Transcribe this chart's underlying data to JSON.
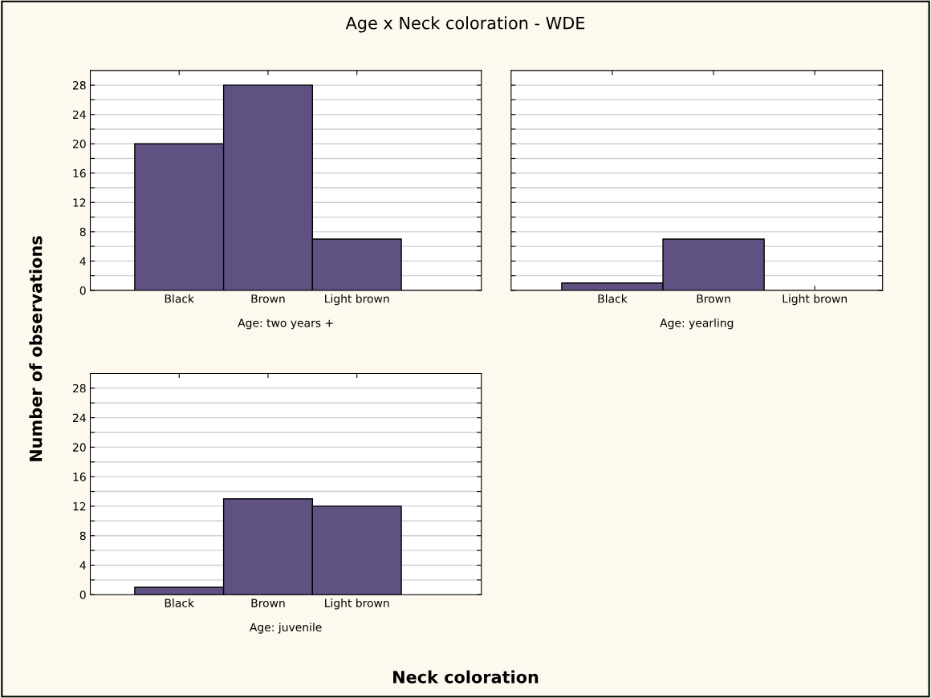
{
  "chart_data": [
    {
      "type": "bar",
      "title": "Age x Neck coloration - WDE",
      "ylabel": "Number of observations",
      "xlabel": "Age: two years +",
      "categories": [
        "Black",
        "Brown",
        "Light brown"
      ],
      "values": [
        20,
        28,
        7
      ],
      "color": "#5f5283",
      "ylim": [
        0,
        30
      ],
      "yticks": [
        0,
        {
          "value": 2,
          "label": null
        },
        4,
        {
          "value": 6,
          "label": null
        },
        8,
        {
          "value": 10,
          "label": null
        },
        12,
        {
          "value": 14,
          "label": null
        },
        16,
        {
          "value": 18,
          "label": null
        },
        20,
        {
          "value": 22,
          "label": null
        },
        24,
        {
          "value": 26,
          "label": null
        },
        28
      ],
      "grid": "y"
    },
    {
      "type": "bar",
      "xlabel": "Age: yearling",
      "categories": [
        "Black",
        "Brown",
        "Light brown"
      ],
      "values": [
        1,
        7,
        0
      ],
      "color": "#5f5283",
      "ylim": [
        0,
        30
      ],
      "yticks": [
        0,
        {
          "value": 2,
          "label": null
        },
        4,
        {
          "value": 6,
          "label": null
        },
        8,
        {
          "value": 10,
          "label": null
        },
        12,
        {
          "value": 14,
          "label": null
        },
        16,
        {
          "value": 18,
          "label": null
        },
        20,
        {
          "value": 22,
          "label": null
        },
        24,
        {
          "value": 26,
          "label": null
        },
        28
      ],
      "grid": "y",
      "tick_labels": "x"
    },
    {
      "type": "bar",
      "xlabel": "Age: juvenile",
      "annotations": [
        "Neck coloration"
      ],
      "categories": [
        "Black",
        "Brown",
        "Light brown"
      ],
      "values": [
        1,
        13,
        12
      ],
      "color": "#5f5283",
      "ylim": [
        0,
        30
      ],
      "yticks": [
        0,
        {
          "value": 2,
          "label": null
        },
        4,
        {
          "value": 6,
          "label": null
        },
        8,
        {
          "value": 10,
          "label": null
        },
        12,
        {
          "value": 14,
          "label": null
        },
        16,
        {
          "value": 18,
          "label": null
        },
        20,
        {
          "value": 22,
          "label": null
        },
        24,
        {
          "value": 26,
          "label": null
        },
        28
      ],
      "grid": "y"
    }
  ]
}
